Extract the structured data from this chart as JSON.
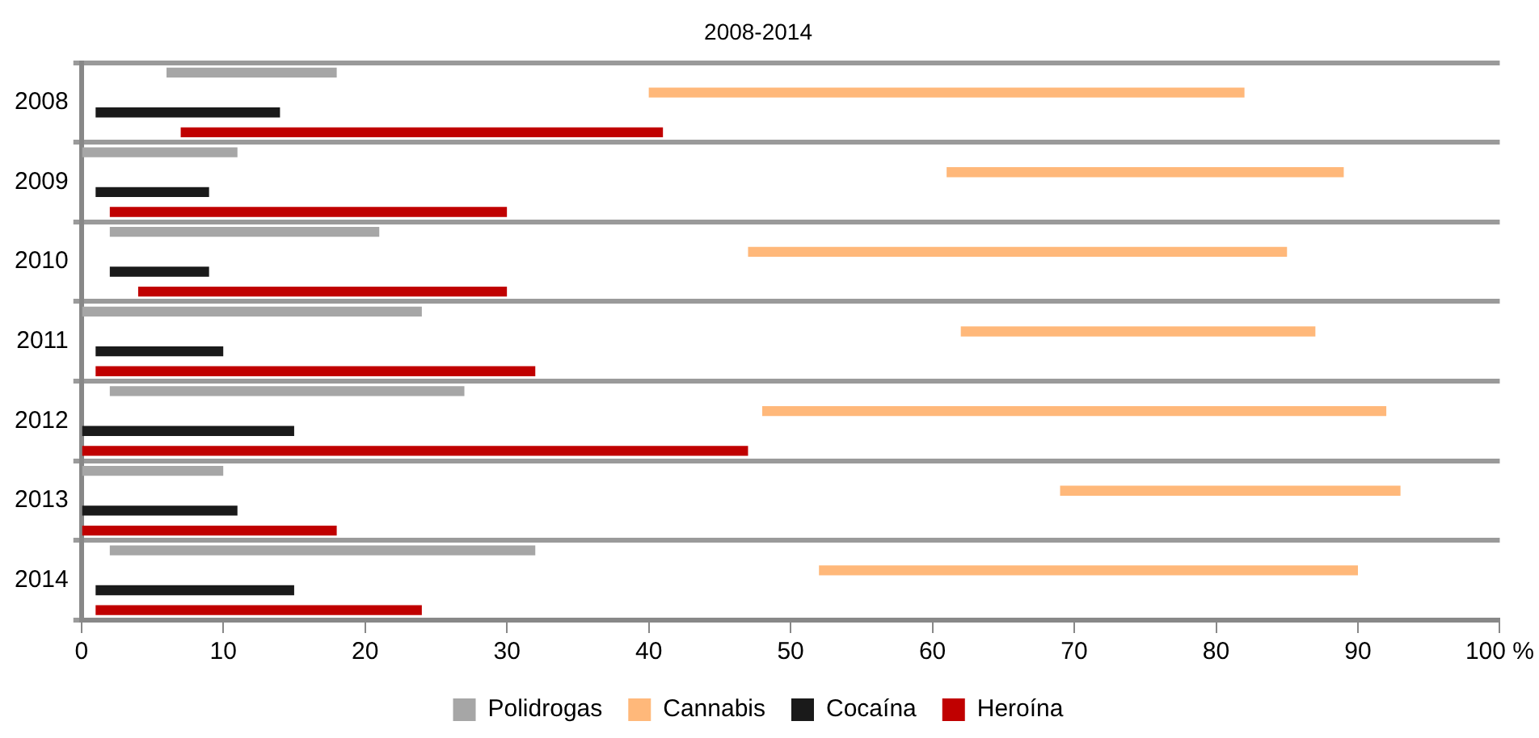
{
  "chart_data": {
    "type": "bar",
    "orientation": "horizontal",
    "title": "2008-2014",
    "categories": [
      "2008",
      "2009",
      "2010",
      "2011",
      "2012",
      "2013",
      "2014"
    ],
    "series": [
      {
        "name": "Polidrogas",
        "color": "#a6a6a6",
        "base": [
          6,
          0,
          2,
          0,
          2,
          0,
          2
        ],
        "values": [
          12,
          11,
          19,
          24,
          25,
          10,
          30
        ]
      },
      {
        "name": "Cannabis",
        "color": "#ffb87a",
        "base": [
          40,
          61,
          47,
          62,
          48,
          69,
          52
        ],
        "values": [
          42,
          28,
          38,
          25,
          44,
          24,
          38
        ]
      },
      {
        "name": "Cocaína",
        "color": "#1a1a1a",
        "base": [
          1,
          1,
          2,
          1,
          0,
          0,
          1
        ],
        "values": [
          13,
          8,
          7,
          9,
          15,
          11,
          14
        ]
      },
      {
        "name": "Heroína",
        "color": "#c00000",
        "base": [
          7,
          2,
          4,
          1,
          0,
          0,
          1
        ],
        "values": [
          34,
          28,
          26,
          31,
          47,
          18,
          23
        ]
      }
    ],
    "xlim": [
      0,
      100
    ],
    "xticks": [
      0,
      10,
      20,
      30,
      40,
      50,
      60,
      70,
      80,
      90,
      {
        "value": 100,
        "label": "100 %"
      }
    ],
    "grid": "y",
    "legend": "bottom"
  }
}
